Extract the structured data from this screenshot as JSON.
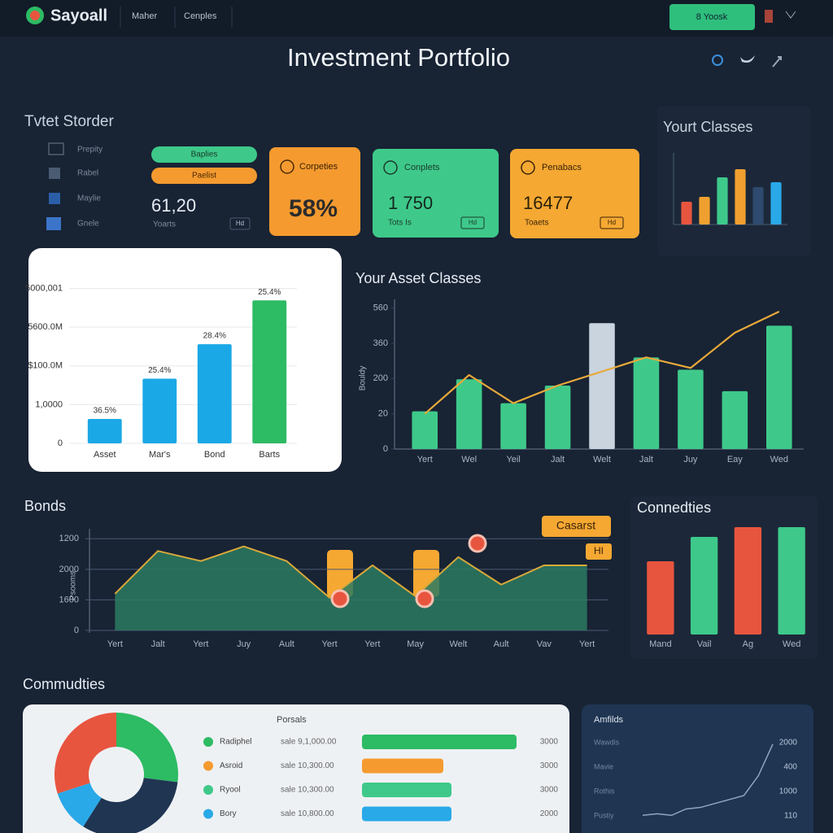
{
  "header": {
    "logo": "Sayoall",
    "nav": [
      "Maher",
      "Cenples"
    ],
    "button": "8 Yoosk",
    "title": "Investment Portfolio"
  },
  "sidebar": {
    "title": "Tvtet Storder",
    "items": [
      "Prepity",
      "Rabel",
      "Maylie",
      "Gnele"
    ],
    "pills": [
      "Baplies",
      "Paelist"
    ],
    "value": "61,20",
    "caption": "Yoarts",
    "tag": "Hd"
  },
  "cards": [
    {
      "label": "Corpeties",
      "value": "58%"
    },
    {
      "label": "Conplets",
      "value": "1 750",
      "caption": "Tots Is",
      "tag": "Hd"
    },
    {
      "label": "Penabacs",
      "value": "16477",
      "caption": "Toaets",
      "tag": "Hd"
    }
  ],
  "chart_data": [
    {
      "type": "bar",
      "title": "Yourt Classes",
      "values": [
        28,
        34,
        58,
        68,
        46,
        52
      ],
      "colors": [
        "#e8553f",
        "#f0a030",
        "#3ec98a",
        "#f0a030",
        "#2e4a6e",
        "#29a9e8"
      ],
      "ylim": [
        0,
        90
      ]
    },
    {
      "type": "bar",
      "categories": [
        "Asset",
        "Mar's",
        "Bond",
        "Barts"
      ],
      "values": [
        0.63,
        1.67,
        2.56,
        3.69
      ],
      "annotations": [
        "36.5%",
        "25.4%",
        "28.4%",
        "25.4%"
      ],
      "colors": [
        "#1aa8e6",
        "#1aa8e6",
        "#1aa8e6",
        "#2dbb64"
      ],
      "ylim": [
        0,
        4.2
      ],
      "yticks": [
        0,
        {
          "value": 1,
          "label": "1,0000"
        },
        {
          "value": 2,
          "label": "$100.0M"
        },
        {
          "value": 3,
          "label": "5600.0M"
        },
        {
          "value": 4,
          "label": "5000,001"
        }
      ],
      "grid": true
    },
    {
      "type": "bar",
      "title": "Your Asset Classes",
      "ylabel": "Bouldy",
      "categories": [
        "Yert",
        "Wel",
        "Yeil",
        "Jalt",
        "Welt",
        "Jalt",
        "Juy",
        "Eay",
        "Wed"
      ],
      "series": [
        {
          "type": "bar",
          "colors": [
            "#3ec98a",
            "#3ec98a",
            "#3ec98a",
            "#3ec98a",
            "#c9d4de",
            "#3ec98a",
            "#3ec98a",
            "#3ec98a",
            "#3ec98a"
          ],
          "values": [
            1.07,
            1.98,
            1.3,
            1.8,
            3.57,
            2.6,
            2.25,
            1.64,
            3.5
          ]
        },
        {
          "type": "line",
          "color": "#e8a93a",
          "values": [
            1.0,
            2.1,
            1.3,
            1.8,
            2.2,
            2.6,
            2.3,
            3.3,
            3.9
          ]
        }
      ],
      "ylim": [
        0,
        4.2
      ],
      "yticks": [
        0,
        {
          "value": 1,
          "label": "20"
        },
        {
          "value": 2,
          "label": "200"
        },
        {
          "value": 3,
          "label": "360"
        },
        {
          "value": 4,
          "label": "560"
        }
      ]
    },
    {
      "type": "area",
      "title": "Bonds",
      "ylabel": "Psooms",
      "categories": [
        "Yert",
        "Jalt",
        "Yert",
        "Juy",
        "Ault",
        "Yert",
        "Yert",
        "May",
        "Welt",
        "Ault",
        "Vav",
        "Yert"
      ],
      "values": [
        1.2,
        2.6,
        2.27,
        2.75,
        2.27,
        1.07,
        2.13,
        1.12,
        2.4,
        1.5,
        2.13,
        2.13
      ],
      "color": "#2c7a62",
      "line_color": "#d9a93a",
      "callouts": [
        "Casarst",
        "HI"
      ],
      "ylim": [
        0,
        3.3
      ],
      "yticks": [
        0,
        {
          "value": 1,
          "label": "1600"
        },
        {
          "value": 2,
          "label": "2000"
        },
        {
          "value": 3,
          "label": "1200"
        }
      ],
      "grid": true
    },
    {
      "type": "bar",
      "title": "Connedties",
      "categories": [
        "Mand",
        "Vail",
        "Ag",
        "Wed"
      ],
      "values": [
        90,
        120,
        132,
        132
      ],
      "colors": [
        "#e8553f",
        "#3ec98a",
        "#e8553f",
        "#3ec98a"
      ],
      "ylim": [
        0,
        140
      ]
    },
    {
      "type": "pie",
      "title": "Commudties",
      "values": [
        27,
        32,
        11,
        30
      ],
      "colors": [
        "#2dbb64",
        "#1f3552",
        "#29a9e8",
        "#e8553f"
      ]
    },
    {
      "type": "line",
      "title": "Amfilds",
      "values": [
        0.1,
        0.12,
        0.1,
        0.18,
        0.2,
        0.25,
        0.3,
        0.35,
        0.6,
        1.0
      ],
      "color": "#8fa6c0",
      "ylim": [
        0,
        1.1
      ],
      "left_labels": [
        "Wawdis",
        "Mavie",
        "Rothis",
        "Pustiy"
      ],
      "right_labels": [
        "2000",
        "400",
        "1000",
        "110"
      ]
    }
  ],
  "table": {
    "title": "Porsals",
    "rows": [
      {
        "name": "Radiphel",
        "amount": "sale 9,1,000.00",
        "value": "3000",
        "bar": 95,
        "color": "#2dbb64"
      },
      {
        "name": "Asroid",
        "amount": "sale 10,300.00",
        "value": "3000",
        "bar": 50,
        "color": "#f59a2f"
      },
      {
        "name": "Ryool",
        "amount": "sale 10,300.00",
        "value": "3000",
        "bar": 55,
        "color": "#3ec98a"
      },
      {
        "name": "Bory",
        "amount": "sale 10,800.00",
        "value": "2000",
        "bar": 55,
        "color": "#29a9e8"
      }
    ]
  }
}
